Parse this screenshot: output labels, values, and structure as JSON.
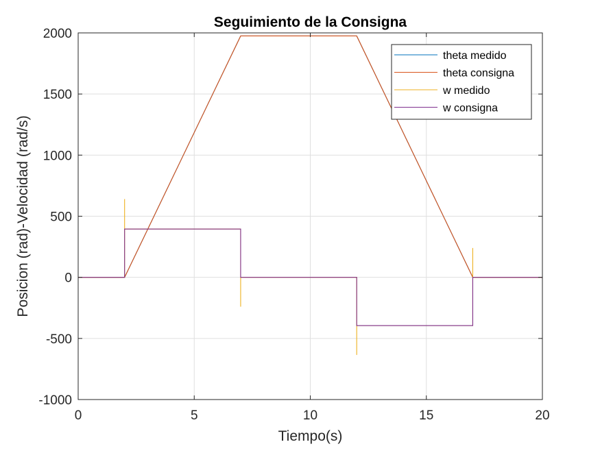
{
  "chart_data": {
    "type": "line",
    "title": "Seguimiento de la Consigna",
    "xlabel": "Tiempo(s)",
    "ylabel": "Posicion (rad)-Velocidad (rad/s)",
    "xlim": [
      0,
      20
    ],
    "ylim": [
      -1000,
      2000
    ],
    "xticks": [
      0,
      5,
      10,
      15,
      20
    ],
    "yticks": [
      -1000,
      -500,
      0,
      500,
      1000,
      1500,
      2000
    ],
    "grid": true,
    "legend_position": "top-right",
    "series": [
      {
        "name": "theta medido",
        "color": "#0072BD",
        "x": [
          0,
          2,
          7,
          12,
          17,
          20
        ],
        "y": [
          0,
          0,
          1975,
          1975,
          0,
          0
        ]
      },
      {
        "name": "theta consigna",
        "color": "#D95319",
        "x": [
          0,
          2,
          7,
          12,
          17,
          20
        ],
        "y": [
          0,
          0,
          1975,
          1975,
          0,
          0
        ]
      },
      {
        "name": "w medido",
        "color": "#EDB120",
        "x": [
          0,
          2,
          2,
          2,
          7,
          7,
          7,
          12,
          12,
          12,
          17,
          17,
          17,
          20
        ],
        "y": [
          0,
          0,
          640,
          395,
          395,
          -240,
          0,
          0,
          -635,
          -395,
          -395,
          240,
          0,
          0
        ]
      },
      {
        "name": "w consigna",
        "color": "#7E2F8E",
        "x": [
          0,
          2,
          2,
          7,
          7,
          12,
          12,
          17,
          17,
          20
        ],
        "y": [
          0,
          0,
          395,
          395,
          0,
          0,
          -395,
          -395,
          0,
          0
        ]
      }
    ]
  }
}
